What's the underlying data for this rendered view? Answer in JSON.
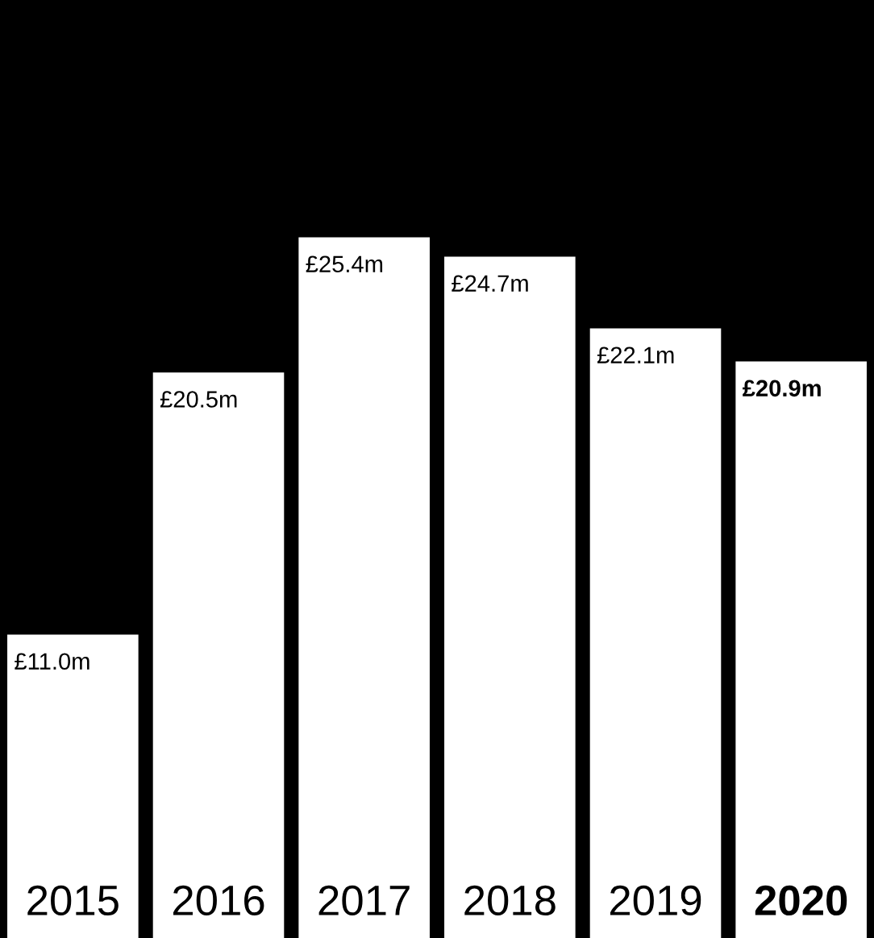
{
  "chart_data": {
    "type": "bar",
    "categories": [
      "2015",
      "2016",
      "2017",
      "2018",
      "2019",
      "2020"
    ],
    "series": [
      {
        "color": "#ffffff",
        "values": [
          11.0,
          20.5,
          25.4,
          24.7,
          22.1,
          20.9
        ],
        "value_labels": [
          "£11.0m",
          "£20.5m",
          "£25.4m",
          "£24.7m",
          "£22.1m",
          "£20.9m"
        ]
      }
    ],
    "ylim": [
      0,
      34
    ],
    "grid": false,
    "legend": false
  }
}
